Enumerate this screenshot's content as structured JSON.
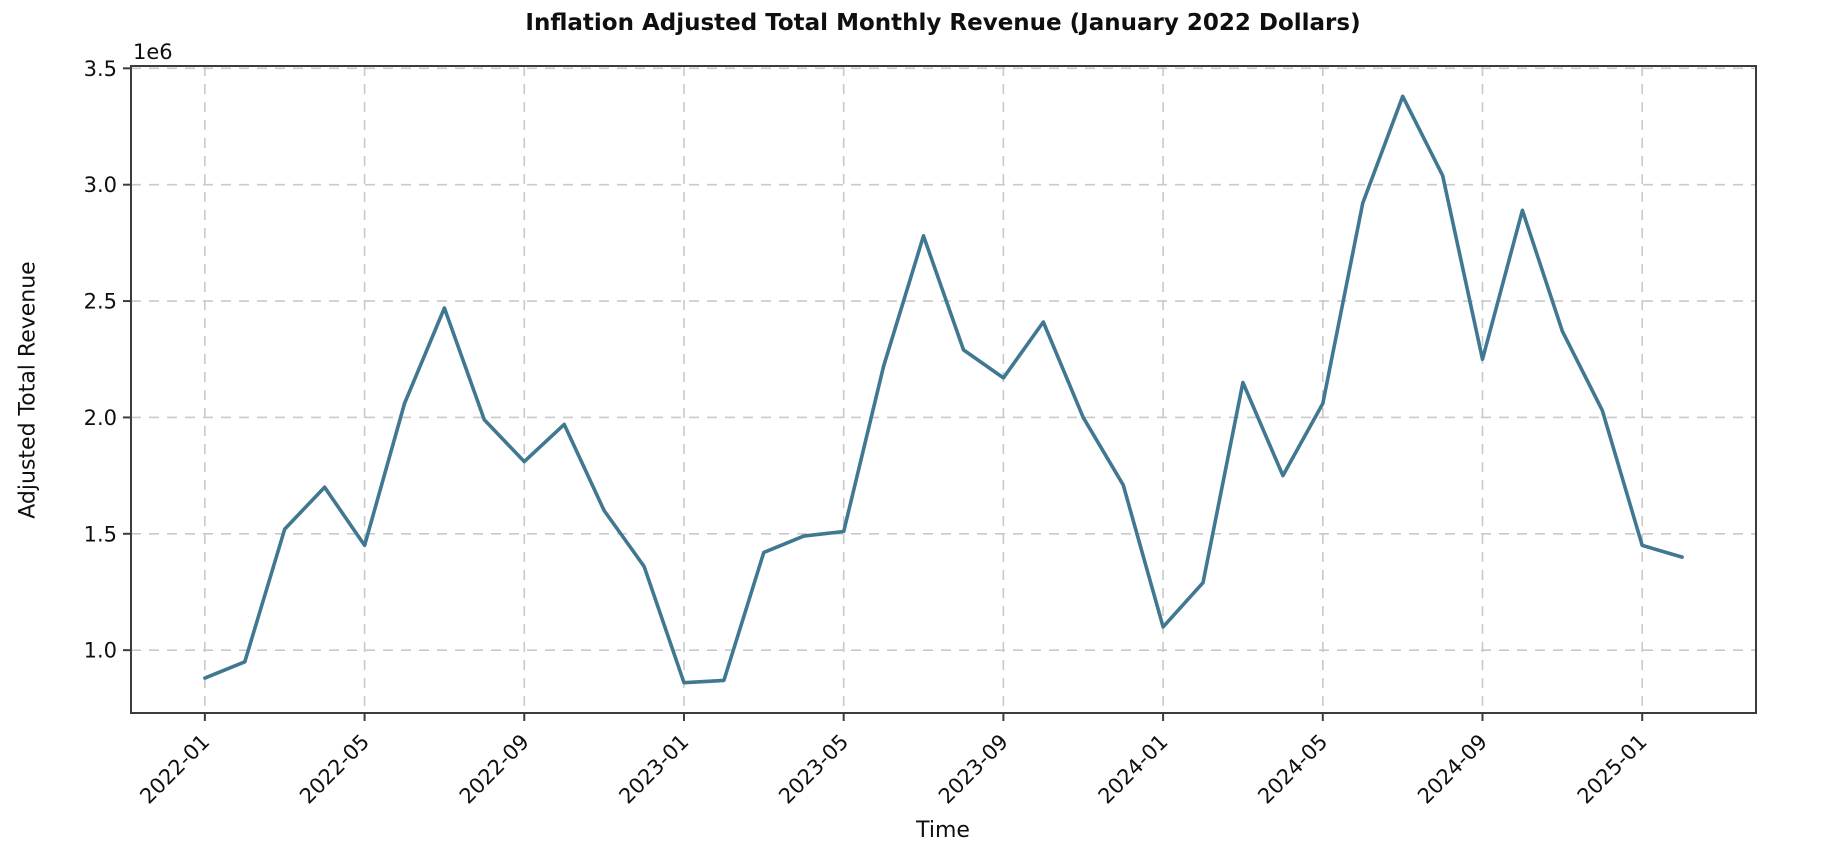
{
  "figure": {
    "title": "Inflation Adjusted Total Monthly Revenue (January 2022 Dollars)",
    "xlabel": "Time",
    "ylabel": "Adjusted Total Revenue",
    "offset_text": "1e6"
  },
  "chart_data": {
    "type": "line",
    "title": "Inflation Adjusted Total Monthly Revenue (January 2022 Dollars)",
    "xlabel": "Time",
    "ylabel": "Adjusted Total Revenue",
    "unit_note": "y values are in units of 1e6 (millions of January 2022 dollars)",
    "unit_multiplier": 1000000,
    "x": [
      "2022-01",
      "2022-02",
      "2022-03",
      "2022-04",
      "2022-05",
      "2022-06",
      "2022-07",
      "2022-08",
      "2022-09",
      "2022-10",
      "2022-11",
      "2022-12",
      "2023-01",
      "2023-02",
      "2023-03",
      "2023-04",
      "2023-05",
      "2023-06",
      "2023-07",
      "2023-08",
      "2023-09",
      "2023-10",
      "2023-11",
      "2023-12",
      "2024-01",
      "2024-02",
      "2024-03",
      "2024-04",
      "2024-05",
      "2024-06",
      "2024-07",
      "2024-08",
      "2024-09",
      "2024-10",
      "2024-11",
      "2024-12",
      "2025-01",
      "2025-02"
    ],
    "values_1e6": [
      0.88,
      0.95,
      1.52,
      1.7,
      1.45,
      2.06,
      2.47,
      1.99,
      1.81,
      1.97,
      1.6,
      1.36,
      0.86,
      0.87,
      1.42,
      1.49,
      1.51,
      2.22,
      2.78,
      2.29,
      2.17,
      2.41,
      2.0,
      1.71,
      1.1,
      1.29,
      2.15,
      1.75,
      2.06,
      2.92,
      3.38,
      3.04,
      2.25,
      2.89,
      2.37,
      2.03,
      1.45,
      1.4
    ],
    "x_tick_month_indices": [
      0,
      4,
      8,
      12,
      16,
      20,
      24,
      28,
      32,
      36
    ],
    "x_tick_labels": [
      "2022-01",
      "2022-05",
      "2022-09",
      "2023-01",
      "2023-05",
      "2023-09",
      "2024-01",
      "2024-05",
      "2024-09",
      "2025-01"
    ],
    "y_ticks": [
      1.0,
      1.5,
      2.0,
      2.5,
      3.0,
      3.5
    ],
    "y_tick_labels": [
      "1.0",
      "1.5",
      "2.0",
      "2.5",
      "3.0",
      "3.5"
    ],
    "ylim": [
      0.73,
      3.51
    ],
    "xlim_months": [
      -1.85,
      38.85
    ],
    "grid": true,
    "grid_style": "dashed",
    "legend": "none",
    "line_color": "#417891",
    "grid_color": "#c9c9c9",
    "spine_color": "#3c3c3c",
    "tick_text_color": "#0f0f0f",
    "background": "#ffffff"
  }
}
